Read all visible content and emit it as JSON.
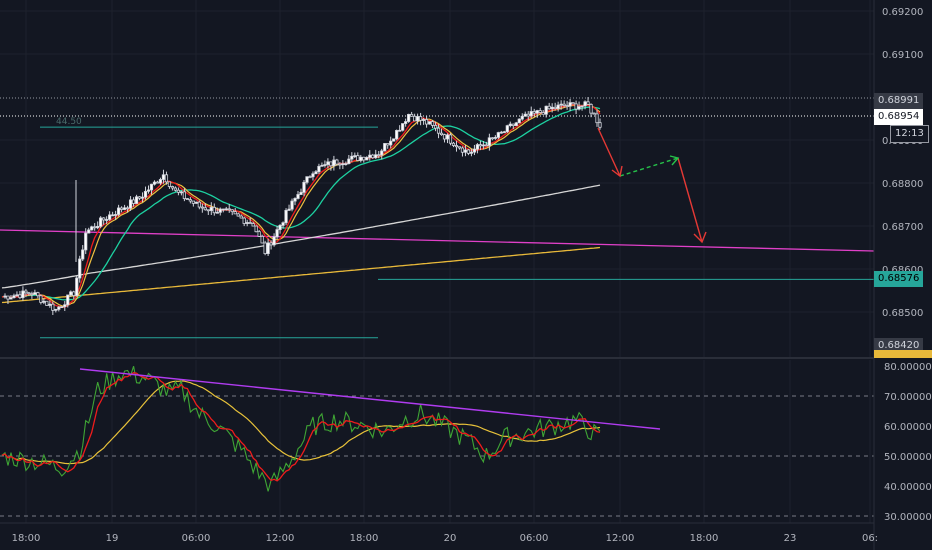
{
  "chart_data": [
    {
      "type": "candlestick",
      "title": "",
      "xlabel": "",
      "ylabel": "",
      "x_ticks": [
        "18:00",
        "19",
        "06:00",
        "12:00",
        "18:00",
        "20",
        "06:00",
        "12:00",
        "18:00",
        "23",
        "06:"
      ],
      "y_ticks": [
        "0.69200",
        "0.69100",
        "0.68900",
        "0.68800",
        "0.68700",
        "0.68600",
        "0.68500"
      ],
      "ylim": [
        0.6836,
        0.6928
      ],
      "grid": true,
      "price_labels": [
        {
          "value": "0.68991",
          "bg": "#363a45",
          "fg": "#d1d4dc",
          "y": 0.68991
        },
        {
          "value": "0.68954",
          "bg": "#ffffff",
          "fg": "#131722",
          "y": 0.68954
        },
        {
          "value": "12:13",
          "bg": "#ffffff",
          "fg": "#131722",
          "y": 0.68922
        },
        {
          "value": "0.68576",
          "bg": "#26a69a",
          "fg": "#000000",
          "y": 0.68576
        },
        {
          "value": "0.68420",
          "bg": "#363a45",
          "fg": "#d1d4dc",
          "y": 0.6842
        }
      ],
      "indicator_label": "44.50",
      "series": [
        {
          "name": "",
          "color": "#ef1c1c",
          "kind": "ma-fast"
        },
        {
          "name": "",
          "color": "#f0c040",
          "kind": "ma-fast2"
        },
        {
          "name": "",
          "color": "#1dd1a1",
          "kind": "ma-mid"
        },
        {
          "name": "",
          "color": "#d6d6d6",
          "kind": "ma-slow"
        },
        {
          "name": "",
          "color": "#e8b93a",
          "kind": "ma-long"
        }
      ],
      "trend_lines": {
        "magenta": {
          "color": "#e040c8",
          "from": [
            0.0,
            0.6869
          ],
          "to": [
            1.0,
            0.6864
          ]
        },
        "support_green": {
          "color": "#26a69a",
          "value": 0.68576
        },
        "range_high_green": {
          "color": "#26a69a",
          "value": 0.6893
        },
        "range_low_green": {
          "color": "#26a69a",
          "value": 0.6844
        }
      },
      "colors": {
        "up": "#ffffff",
        "down": "#ffffff",
        "background": "#131722"
      }
    },
    {
      "type": "line",
      "title": "",
      "y_ticks": [
        "80.00000",
        "70.00000",
        "60.00000",
        "50.00000",
        "40.00000",
        "30.00000"
      ],
      "ylim": [
        27,
        82
      ],
      "dashed_levels": [
        70,
        50,
        30
      ],
      "series": [
        {
          "name": "",
          "color": "#3fa535"
        },
        {
          "name": "",
          "color": "#ef1c1c"
        },
        {
          "name": "",
          "color": "#e8c23a"
        }
      ],
      "trend_line": {
        "color": "#b03cf0",
        "from": 79,
        "to": 59
      }
    }
  ]
}
